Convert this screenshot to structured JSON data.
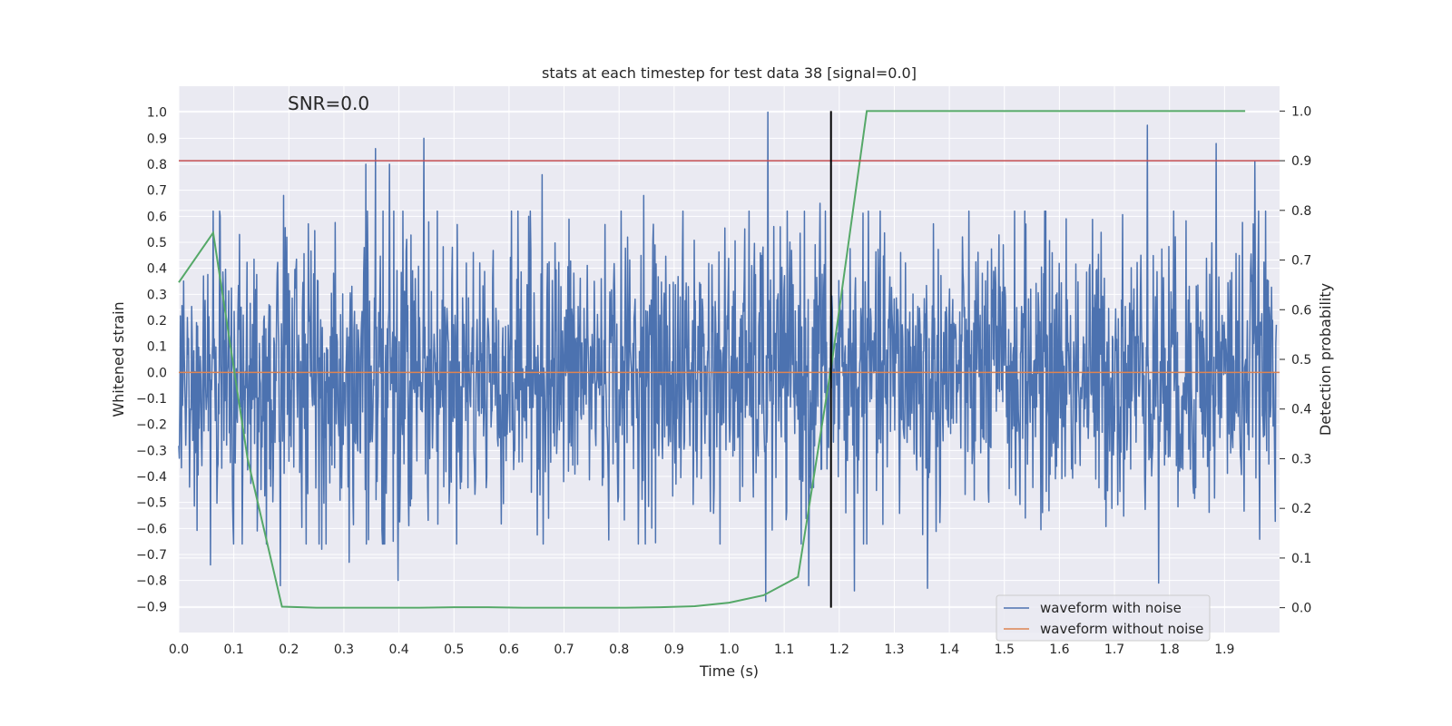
{
  "chart_data": {
    "type": "line",
    "title": "stats at each timestep for test data 38 [signal=0.0]",
    "annotation": "SNR=0.0",
    "xlabel": "Time (s)",
    "ylabel": "Whitened strain",
    "ylabel_right": "Detection probability",
    "xlim": [
      0.0,
      2.0
    ],
    "ylim": [
      -1.0,
      1.1
    ],
    "ylim_right": [
      -0.05,
      1.05
    ],
    "x_ticks": [
      "0.0",
      "0.1",
      "0.2",
      "0.3",
      "0.4",
      "0.5",
      "0.6",
      "0.7",
      "0.8",
      "0.9",
      "1.0",
      "1.1",
      "1.2",
      "1.3",
      "1.4",
      "1.5",
      "1.6",
      "1.7",
      "1.8",
      "1.9"
    ],
    "y_ticks": [
      "1.0",
      "0.9",
      "0.8",
      "0.7",
      "0.6",
      "0.5",
      "0.4",
      "0.3",
      "0.2",
      "0.1",
      "0.0",
      "−0.1",
      "−0.2",
      "−0.3",
      "−0.4",
      "−0.5",
      "−0.6",
      "−0.7",
      "−0.8",
      "−0.9"
    ],
    "y_ticks_right": [
      "1.0",
      "0.9",
      "0.8",
      "0.7",
      "0.6",
      "0.5",
      "0.4",
      "0.3",
      "0.2",
      "0.1",
      "0.0"
    ],
    "threshold_line": {
      "y_right": 0.9,
      "color": "#c44e52"
    },
    "vertical_marker": {
      "x": 1.185,
      "y_from_right": 0.0,
      "y_to_right": 1.0,
      "color": "#000000"
    },
    "series": [
      {
        "name": "waveform with noise",
        "color": "#4c72b0",
        "axis": "left",
        "noise_sd": 0.27,
        "samples": 2048,
        "spikes": [
          {
            "t": 0.058,
            "v": -0.74
          },
          {
            "t": 0.075,
            "v": 0.6
          },
          {
            "t": 0.11,
            "v": 0.53
          },
          {
            "t": 0.185,
            "v": -0.82
          },
          {
            "t": 0.19,
            "v": 0.68
          },
          {
            "t": 0.26,
            "v": -0.68
          },
          {
            "t": 0.31,
            "v": -0.73
          },
          {
            "t": 0.34,
            "v": 0.8
          },
          {
            "t": 0.357,
            "v": 0.86
          },
          {
            "t": 0.383,
            "v": 0.8
          },
          {
            "t": 0.398,
            "v": -0.8
          },
          {
            "t": 0.445,
            "v": 0.9
          },
          {
            "t": 0.66,
            "v": 0.76
          },
          {
            "t": 0.845,
            "v": 0.68
          },
          {
            "t": 1.07,
            "v": 1.0
          },
          {
            "t": 1.066,
            "v": -0.88
          },
          {
            "t": 1.145,
            "v": -0.82
          },
          {
            "t": 1.165,
            "v": 0.65
          },
          {
            "t": 1.228,
            "v": -0.84
          },
          {
            "t": 1.36,
            "v": -0.83
          },
          {
            "t": 1.76,
            "v": 0.95
          },
          {
            "t": 1.78,
            "v": -0.81
          },
          {
            "t": 1.885,
            "v": 0.88
          },
          {
            "t": 1.955,
            "v": 0.81
          }
        ]
      },
      {
        "name": "waveform without noise",
        "color": "#dd8452",
        "axis": "left",
        "x": [
          0.0,
          2.0
        ],
        "y": [
          0.0,
          0.0
        ]
      },
      {
        "name": "detection probability",
        "color": "#55a868",
        "axis": "right",
        "x": [
          0.0,
          0.0625,
          0.125,
          0.1875,
          0.25,
          0.3125,
          0.375,
          0.4375,
          0.5,
          0.5625,
          0.625,
          0.6875,
          0.75,
          0.8125,
          0.875,
          0.9375,
          1.0,
          1.0625,
          1.125,
          1.1875,
          1.25,
          1.3125,
          1.375,
          1.4375,
          1.5,
          1.5625,
          1.625,
          1.6875,
          1.75,
          1.8125,
          1.875,
          1.9375
        ],
        "y": [
          0.655,
          0.755,
          0.3,
          0.002,
          0.0,
          0.0,
          0.0,
          0.0,
          0.001,
          0.001,
          0.0,
          0.0,
          0.0,
          0.0,
          0.001,
          0.003,
          0.01,
          0.025,
          0.062,
          0.5,
          1.0,
          1.0,
          1.0,
          1.0,
          1.0,
          1.0,
          1.0,
          1.0,
          1.0,
          1.0,
          1.0,
          1.0
        ]
      }
    ],
    "legend": {
      "location": "bottom-right",
      "entries": [
        {
          "label": "waveform with noise",
          "color": "#4c72b0"
        },
        {
          "label": "waveform without noise",
          "color": "#dd8452"
        }
      ]
    },
    "grid": true,
    "background": "#eaeaf2"
  }
}
